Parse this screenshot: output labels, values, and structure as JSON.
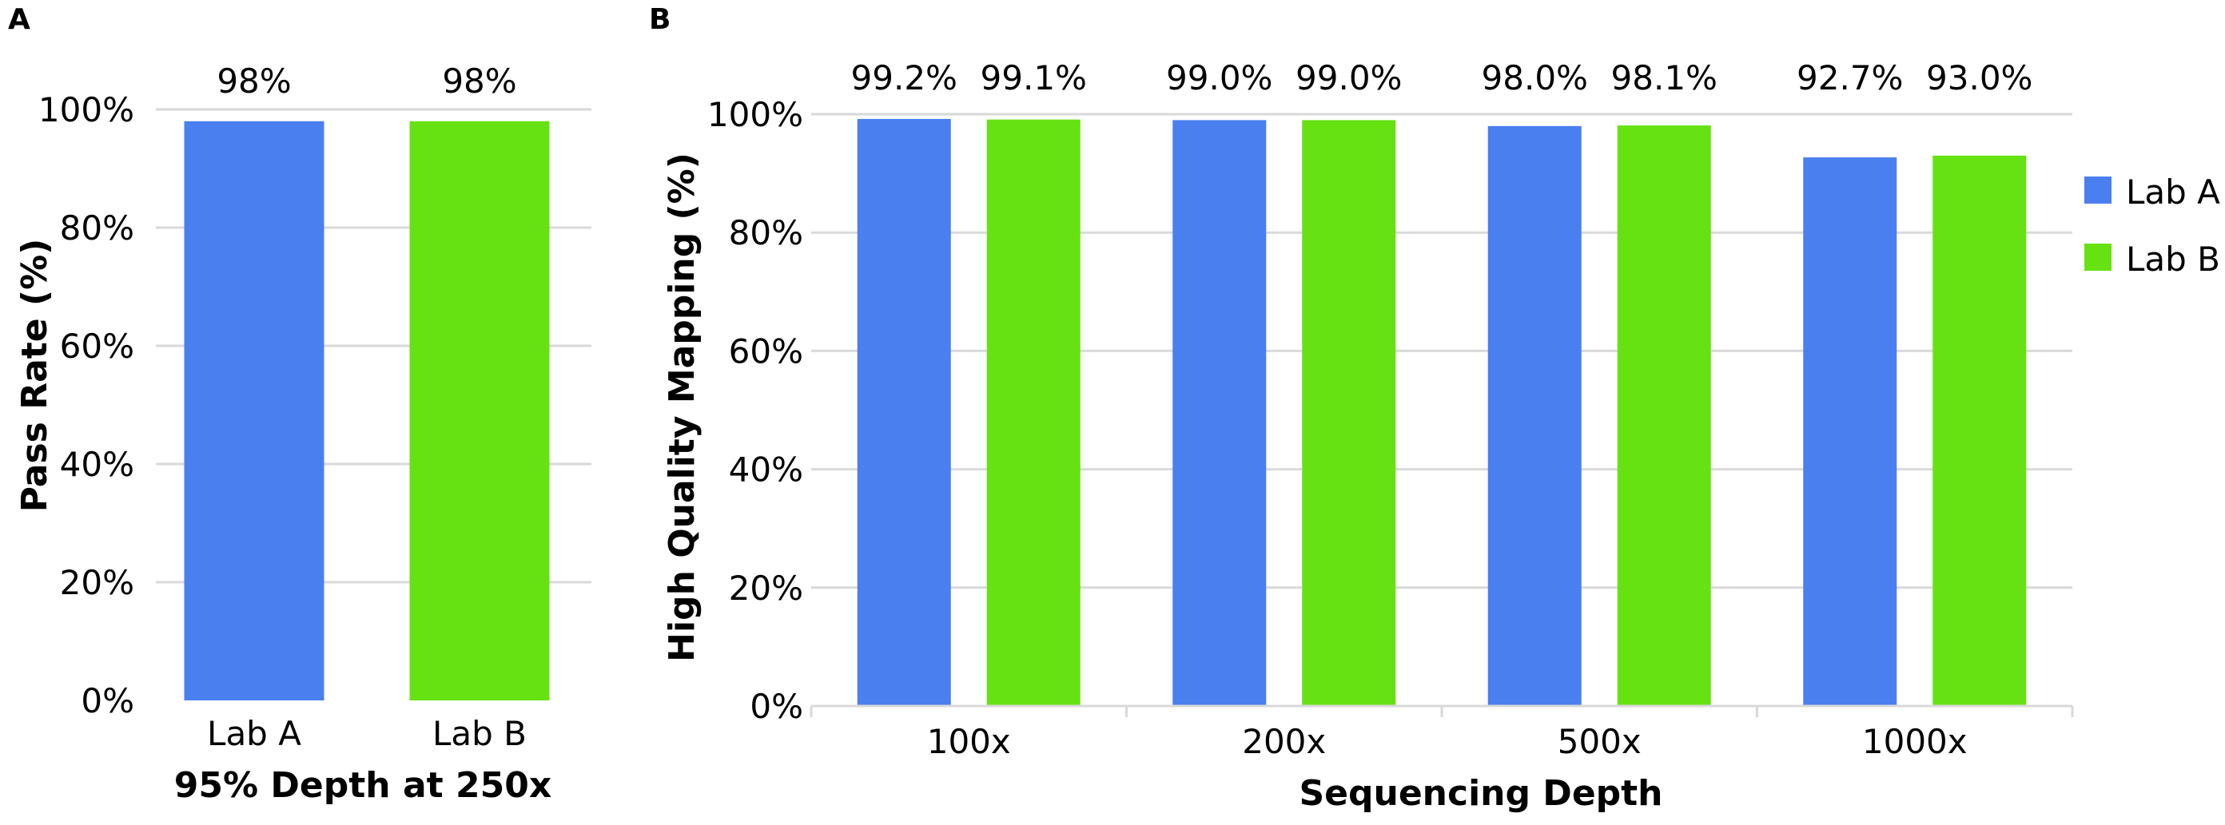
{
  "chart_data": [
    {
      "panel_label": "A",
      "type": "bar",
      "categories": [
        "Lab A",
        "Lab B"
      ],
      "values": [
        98,
        98
      ],
      "data_labels": [
        "98%",
        "98%"
      ],
      "colors": [
        "#4a7ff0",
        "#66e213"
      ],
      "ylabel": "Pass Rate (%)",
      "xlabel": "95% Depth at 250x",
      "ylim": [
        0,
        100
      ],
      "yticks": [
        "0%",
        "20%",
        "40%",
        "60%",
        "80%",
        "100%"
      ],
      "grid": true
    },
    {
      "panel_label": "B",
      "type": "bar",
      "categories": [
        "100x",
        "200x",
        "500x",
        "1000x"
      ],
      "series": [
        {
          "name": "Lab A",
          "color": "#4a7ff0",
          "values": [
            99.2,
            99.0,
            98.0,
            92.7
          ],
          "data_labels": [
            "99.2%",
            "99.0%",
            "98.0%",
            "92.7%"
          ]
        },
        {
          "name": "Lab B",
          "color": "#66e213",
          "values": [
            99.1,
            99.0,
            98.1,
            93.0
          ],
          "data_labels": [
            "99.1%",
            "99.0%",
            "98.1%",
            "93.0%"
          ]
        }
      ],
      "ylabel": "High Quality Mapping (%)",
      "xlabel": "Sequencing Depth",
      "ylim": [
        0,
        100
      ],
      "yticks": [
        "0%",
        "20%",
        "40%",
        "60%",
        "80%",
        "100%"
      ],
      "grid": true,
      "legend_position": "right"
    }
  ]
}
